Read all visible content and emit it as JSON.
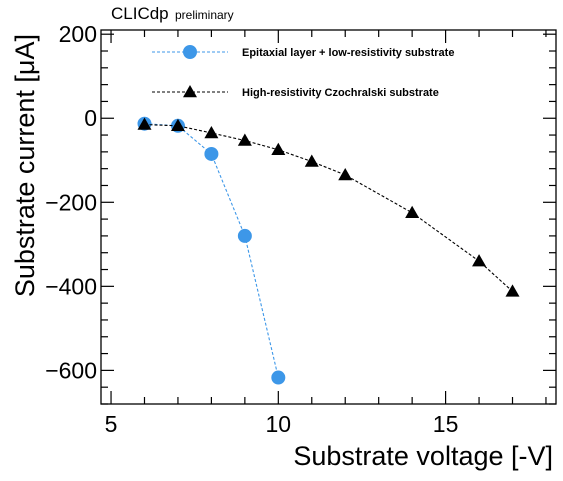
{
  "header": {
    "experiment": "CLICdp",
    "status": "preliminary"
  },
  "chart_data": {
    "type": "line",
    "xlabel": "Substrate voltage [-V]",
    "ylabel": "Substrate current [μA]",
    "xlim": [
      4.7,
      18.3
    ],
    "ylim": [
      -680,
      210
    ],
    "x_ticks": [
      5,
      10,
      15
    ],
    "y_ticks": [
      200,
      0,
      -200,
      -400,
      -600
    ],
    "legend_position": "top-center",
    "grid": false,
    "series": [
      {
        "name": "Epitaxial layer + low-resistivity substrate",
        "marker": "circle",
        "line_style": "dashed",
        "color": "#3d97e8",
        "x": [
          6,
          7,
          8,
          9,
          10
        ],
        "y": [
          -13,
          -18,
          -85,
          -280,
          -617
        ]
      },
      {
        "name": "High-resistivity Czochralski substrate",
        "marker": "triangle",
        "line_style": "dashed",
        "color": "#000000",
        "x": [
          6,
          7,
          8,
          9,
          10,
          11,
          12,
          14,
          16,
          17
        ],
        "y": [
          -15,
          -18,
          -35,
          -53,
          -75,
          -103,
          -135,
          -225,
          -340,
          -412
        ]
      }
    ]
  }
}
